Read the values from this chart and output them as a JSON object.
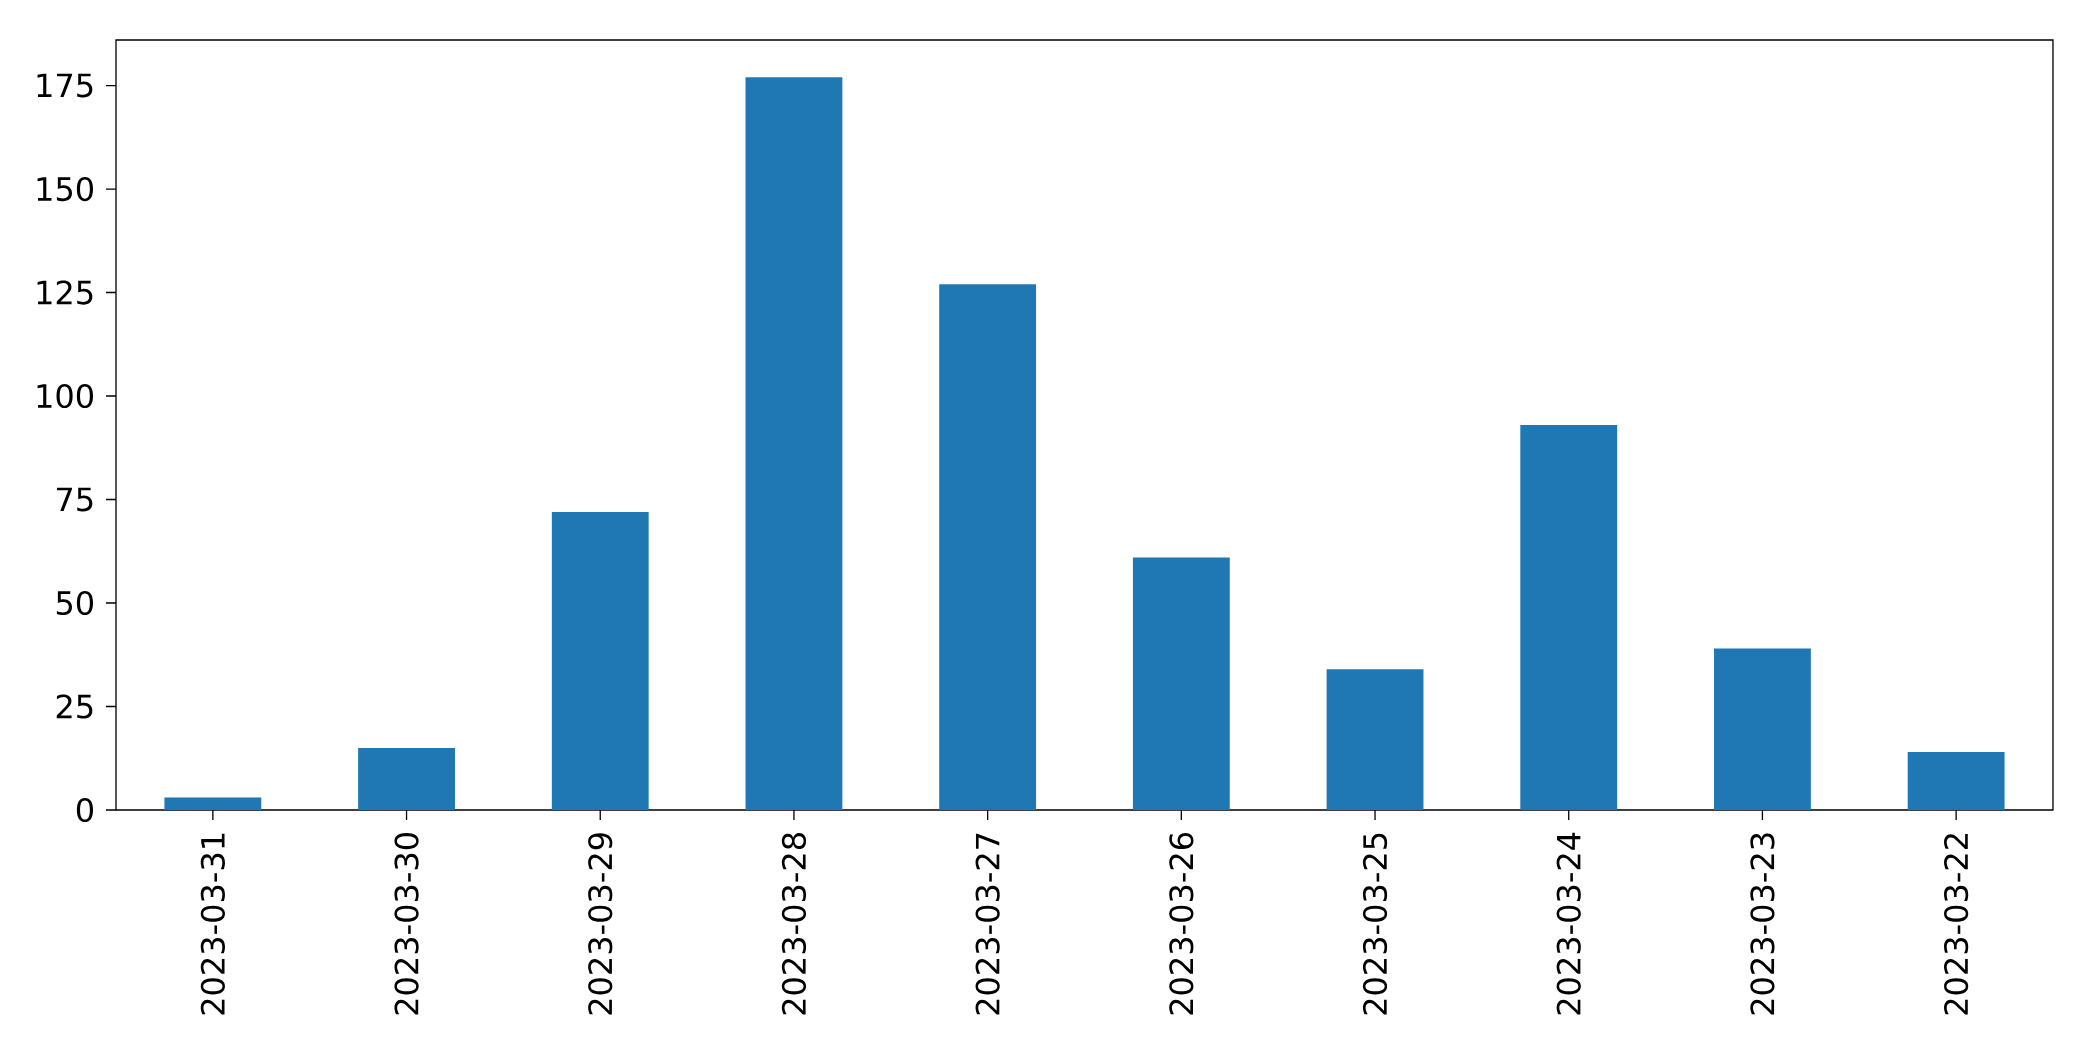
{
  "chart_data": {
    "type": "bar",
    "categories": [
      "2023-03-31",
      "2023-03-30",
      "2023-03-29",
      "2023-03-28",
      "2023-03-27",
      "2023-03-26",
      "2023-03-25",
      "2023-03-24",
      "2023-03-23",
      "2023-03-22"
    ],
    "values": [
      3,
      15,
      72,
      177,
      127,
      61,
      34,
      93,
      39,
      14
    ],
    "color": "#1f77b4",
    "ylim": [
      0,
      186
    ],
    "yticks": [
      0,
      25,
      50,
      75,
      100,
      125,
      150,
      175
    ],
    "grid": false
  }
}
